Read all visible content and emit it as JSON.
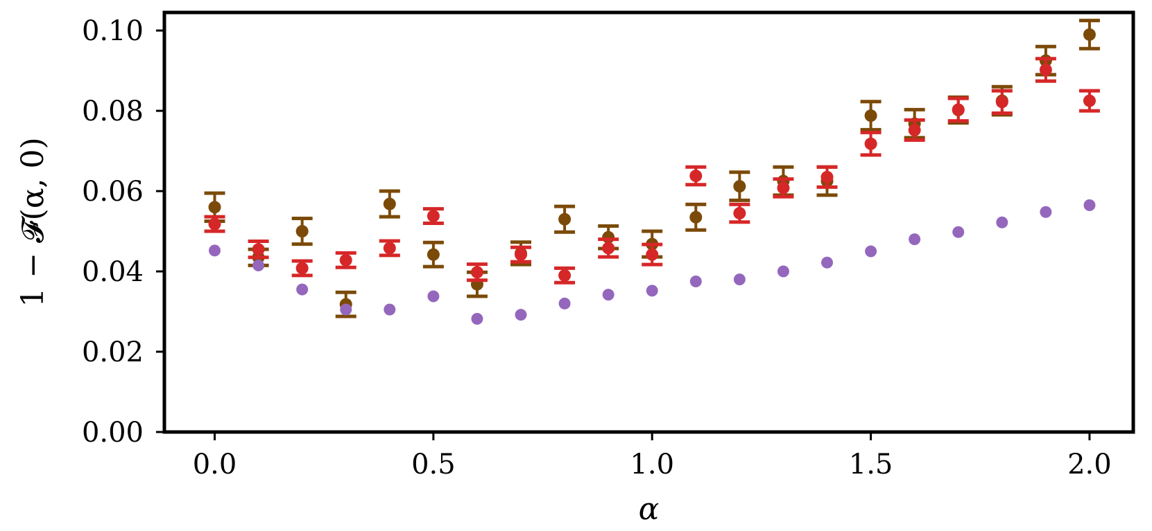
{
  "chart_data": {
    "type": "scatter",
    "xlabel": "α",
    "ylabel": "1 − 𝓕(α, 0)",
    "xlim": [
      -0.115,
      2.1
    ],
    "ylim": [
      0.0,
      0.1045
    ],
    "xticks": [
      "0.0",
      "0.5",
      "1.0",
      "1.5",
      "2.0"
    ],
    "xtick_values": [
      0.0,
      0.5,
      1.0,
      1.5,
      2.0
    ],
    "yticks": [
      "0.00",
      "0.02",
      "0.04",
      "0.06",
      "0.08",
      "0.10"
    ],
    "ytick_values": [
      0.0,
      0.02,
      0.04,
      0.06,
      0.08,
      0.1
    ],
    "grid": false,
    "x": [
      0.0,
      0.1,
      0.2,
      0.3,
      0.4,
      0.5,
      0.6,
      0.7,
      0.8,
      0.9,
      1.0,
      1.1,
      1.2,
      1.3,
      1.4,
      1.5,
      1.6,
      1.7,
      1.8,
      1.9,
      2.0
    ],
    "series": [
      {
        "color": "#7b4a08",
        "marker": "errorbar",
        "values": [
          0.056,
          0.0435,
          0.05,
          0.0318,
          0.0568,
          0.0442,
          0.0368,
          0.0445,
          0.053,
          0.0485,
          0.0468,
          0.0535,
          0.0612,
          0.0625,
          0.0625,
          0.0788,
          0.0768,
          0.0802,
          0.0825,
          0.0925,
          0.099
        ],
        "errors": [
          0.0035,
          0.002,
          0.0032,
          0.003,
          0.0032,
          0.003,
          0.003,
          0.0028,
          0.0032,
          0.0028,
          0.0032,
          0.0032,
          0.0035,
          0.0035,
          0.0035,
          0.0035,
          0.0035,
          0.0032,
          0.0035,
          0.0035,
          0.0035
        ]
      },
      {
        "color": "#d62728",
        "marker": "errorbar",
        "values": [
          0.0518,
          0.0455,
          0.0408,
          0.0428,
          0.0458,
          0.0538,
          0.0398,
          0.0442,
          0.039,
          0.0458,
          0.0442,
          0.0638,
          0.0545,
          0.0608,
          0.0635,
          0.0718,
          0.0752,
          0.0803,
          0.0822,
          0.0902,
          0.0825
        ],
        "errors": [
          0.0018,
          0.002,
          0.0018,
          0.0018,
          0.0018,
          0.0018,
          0.002,
          0.0018,
          0.0018,
          0.0022,
          0.0025,
          0.0022,
          0.0022,
          0.0022,
          0.0025,
          0.0028,
          0.0025,
          0.0028,
          0.0028,
          0.0028,
          0.0025
        ]
      },
      {
        "color": "#9467bd",
        "marker": "dot",
        "values": [
          0.0452,
          0.0415,
          0.0355,
          0.0305,
          0.0305,
          0.0338,
          0.0282,
          0.0292,
          0.032,
          0.0342,
          0.0352,
          0.0375,
          0.038,
          0.04,
          0.0422,
          0.045,
          0.048,
          0.0498,
          0.0522,
          0.0548,
          0.0565
        ],
        "errors": null
      }
    ]
  }
}
